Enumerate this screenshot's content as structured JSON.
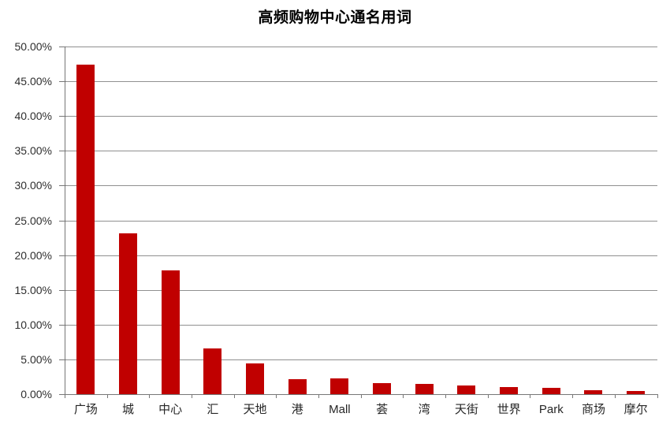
{
  "chart_data": {
    "type": "bar",
    "title": "高频购物中心通名用词",
    "categories": [
      "广场",
      "城",
      "中心",
      "汇",
      "天地",
      "港",
      "Mall",
      "荟",
      "湾",
      "天街",
      "世界",
      "Park",
      "商场",
      "摩尔"
    ],
    "values": [
      47.4,
      23.1,
      17.8,
      6.6,
      4.4,
      2.2,
      2.3,
      1.6,
      1.5,
      1.2,
      1.0,
      0.9,
      0.6,
      0.5
    ],
    "value_unit": "%",
    "xlabel": "",
    "ylabel": "",
    "ylim": [
      0,
      50
    ],
    "ytick_step": 5,
    "y_tick_labels": [
      "0.00%",
      "5.00%",
      "10.00%",
      "15.00%",
      "20.00%",
      "25.00%",
      "30.00%",
      "35.00%",
      "40.00%",
      "45.00%",
      "50.00%"
    ],
    "grid": true,
    "legend": false,
    "colors": {
      "bar": "#c00000",
      "grid": "#909090",
      "axis": "#777777",
      "tick": "#777777",
      "y_label_text": "#2e2e2e",
      "x_label_text": "#262626",
      "title_text": "#000000",
      "background": "#ffffff"
    }
  }
}
